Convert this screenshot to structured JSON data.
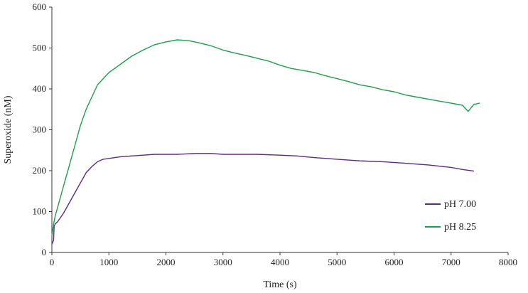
{
  "chart_data": {
    "type": "line",
    "title": "",
    "xlabel": "Time (s)",
    "ylabel": "Superoxide (nM)",
    "xlim": [
      0,
      8000
    ],
    "ylim": [
      0,
      600
    ],
    "x_ticks": [
      "0",
      "1000",
      "2000",
      "3000",
      "4000",
      "5000",
      "6000",
      "7000",
      "8000"
    ],
    "y_ticks": [
      "0",
      "100",
      "200",
      "300",
      "400",
      "500",
      "600"
    ],
    "grid": false,
    "legend_position": "right",
    "series": [
      {
        "name": "pH 7.00",
        "color": "#5b2b82",
        "x": [
          0,
          30,
          40,
          60,
          100,
          200,
          300,
          400,
          500,
          600,
          700,
          800,
          900,
          1000,
          1200,
          1400,
          1600,
          1800,
          2000,
          2200,
          2500,
          2800,
          3000,
          3300,
          3600,
          4000,
          4300,
          4600,
          5000,
          5400,
          5800,
          6200,
          6600,
          7000,
          7200,
          7400
        ],
        "y": [
          20,
          30,
          65,
          70,
          75,
          95,
          120,
          145,
          170,
          195,
          210,
          222,
          228,
          230,
          234,
          236,
          238,
          240,
          240,
          240,
          242,
          242,
          240,
          240,
          240,
          238,
          236,
          232,
          228,
          224,
          222,
          218,
          214,
          208,
          203,
          199
        ]
      },
      {
        "name": "pH 8.25",
        "color": "#1f9e4a",
        "x": [
          0,
          30,
          60,
          100,
          200,
          300,
          400,
          500,
          600,
          700,
          800,
          900,
          1000,
          1100,
          1200,
          1400,
          1600,
          1800,
          2000,
          2200,
          2400,
          2600,
          2800,
          3000,
          3200,
          3400,
          3600,
          3800,
          4000,
          4200,
          4400,
          4600,
          4800,
          5000,
          5200,
          5400,
          5600,
          5800,
          6000,
          6200,
          6400,
          6600,
          6800,
          7000,
          7200,
          7300,
          7400,
          7500
        ],
        "y": [
          40,
          70,
          90,
          110,
          160,
          210,
          260,
          310,
          350,
          380,
          410,
          425,
          440,
          450,
          460,
          480,
          495,
          508,
          515,
          520,
          518,
          512,
          505,
          495,
          488,
          482,
          475,
          468,
          458,
          450,
          445,
          440,
          432,
          425,
          418,
          410,
          405,
          398,
          393,
          385,
          380,
          375,
          370,
          365,
          360,
          345,
          362,
          365
        ]
      }
    ]
  }
}
